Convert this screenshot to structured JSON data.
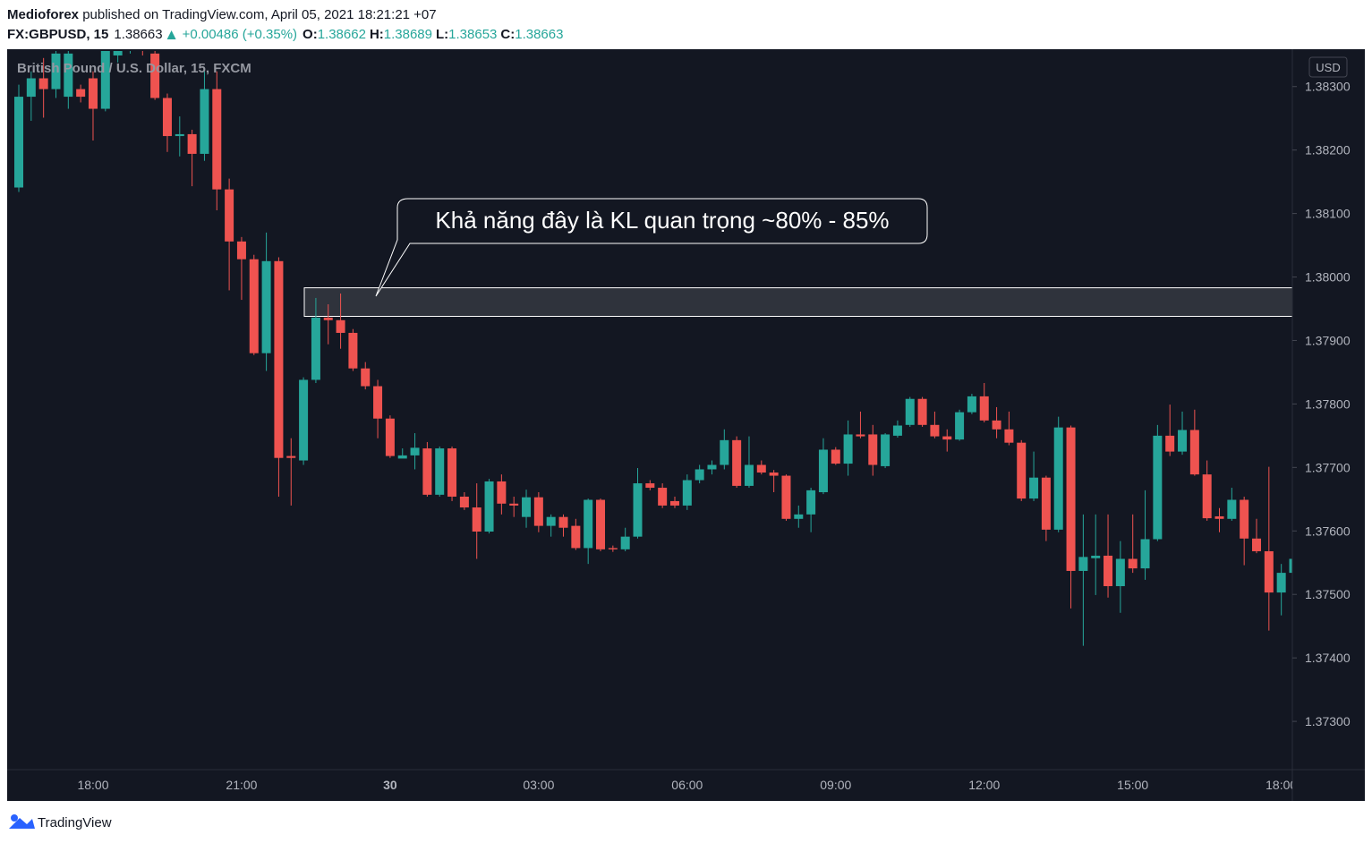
{
  "header": {
    "author": "Medioforex",
    "published": "published on TradingView.com, April 05, 2021 18:21:21 +07",
    "symbol": "FX:GBPUSD, 15",
    "last": "1.38663",
    "change": "+0.00486 (+0.35%)",
    "ohlc": [
      {
        "label": "O:",
        "value": "1.38662"
      },
      {
        "label": "H:",
        "value": "1.38689"
      },
      {
        "label": "L:",
        "value": "1.38653"
      },
      {
        "label": "C:",
        "value": "1.38663"
      }
    ]
  },
  "footer": {
    "brand": "TradingView"
  },
  "chart_data": {
    "type": "candlestick",
    "legend": "British Pound / U.S. Dollar, 15, FXCM",
    "currency": "USD",
    "annotation": "Khả năng đây là KL quan trọng ~80% - 85%",
    "zone": [
      1.37938,
      1.37983
    ],
    "up_color": "#26a69a",
    "down_color": "#ef5350",
    "ylim": [
      1.37224,
      1.38356
    ],
    "yticks": [
      {
        "value": 1.373,
        "label": "1.37300"
      },
      {
        "value": 1.374,
        "label": "1.37400"
      },
      {
        "value": 1.375,
        "label": "1.37500"
      },
      {
        "value": 1.376,
        "label": "1.37600"
      },
      {
        "value": 1.377,
        "label": "1.37700"
      },
      {
        "value": 1.378,
        "label": "1.37800"
      },
      {
        "value": 1.379,
        "label": "1.37900"
      },
      {
        "value": 1.38,
        "label": "1.38000"
      },
      {
        "value": 1.381,
        "label": "1.38100"
      },
      {
        "value": 1.382,
        "label": "1.38200"
      },
      {
        "value": 1.383,
        "label": "1.38300"
      }
    ],
    "categories": [
      null,
      null,
      null,
      null,
      null,
      null,
      "18:00",
      null,
      null,
      null,
      null,
      null,
      null,
      null,
      null,
      null,
      null,
      null,
      "21:00",
      null,
      null,
      null,
      null,
      null,
      null,
      null,
      null,
      null,
      null,
      null,
      "30",
      null,
      null,
      null,
      null,
      null,
      null,
      null,
      null,
      null,
      null,
      null,
      "03:00",
      null,
      null,
      null,
      null,
      null,
      null,
      null,
      null,
      null,
      null,
      null,
      "06:00",
      null,
      null,
      null,
      null,
      null,
      null,
      null,
      null,
      null,
      null,
      null,
      "09:00",
      null,
      null,
      null,
      null,
      null,
      null,
      null,
      null,
      null,
      null,
      null,
      "12:00",
      null,
      null,
      null,
      null,
      null,
      null,
      null,
      null,
      null,
      null,
      null,
      "15:00",
      null,
      null,
      null,
      null,
      null,
      null,
      null,
      null,
      null,
      null,
      null,
      "18:00",
      null
    ],
    "open": [
      1.38141,
      1.38284,
      1.38313,
      1.38296,
      1.38284,
      1.38296,
      1.38313,
      1.38265,
      1.38349,
      1.38356,
      1.38373,
      1.38352,
      1.38282,
      1.38222,
      1.38225,
      1.38194,
      1.38296,
      1.38138,
      1.38056,
      1.38028,
      1.3788,
      1.38025,
      1.37718,
      1.37711,
      1.37838,
      1.37936,
      1.37932,
      1.37912,
      1.37856,
      1.37828,
      1.37777,
      1.37714,
      1.37719,
      1.3773,
      1.37657,
      1.3773,
      1.37654,
      1.37637,
      1.37599,
      1.37678,
      1.37643,
      1.37622,
      1.37653,
      1.37608,
      1.37622,
      1.37608,
      1.37573,
      1.37649,
      1.37573,
      1.37571,
      1.37591,
      1.37675,
      1.37668,
      1.37647,
      1.3764,
      1.3768,
      1.37697,
      1.37704,
      1.37743,
      1.37671,
      1.37704,
      1.37692,
      1.37687,
      1.37619,
      1.37626,
      1.37661,
      1.37728,
      1.37706,
      1.37752,
      1.37752,
      1.37702,
      1.3775,
      1.37767,
      1.37808,
      1.37767,
      1.37749,
      1.37744,
      1.37787,
      1.37812,
      1.37774,
      1.3776,
      1.37739,
      1.37651,
      1.37684,
      1.37602,
      1.37763,
      1.37537,
      1.37557,
      1.37561,
      1.37513,
      1.37556,
      1.37541,
      1.37587,
      1.3775,
      1.37725,
      1.37759,
      1.37689,
      1.37623,
      1.37619,
      1.37649,
      1.37588,
      1.37568,
      1.37503,
      1.37534
    ],
    "high": [
      1.38303,
      1.38324,
      1.38345,
      1.38359,
      1.38359,
      1.38303,
      1.38324,
      1.38366,
      1.38363,
      1.38383,
      1.3838,
      1.38366,
      1.38289,
      1.38253,
      1.38232,
      1.38324,
      1.38324,
      1.38155,
      1.38063,
      1.38035,
      1.3807,
      1.38031,
      1.37746,
      1.37842,
      1.37967,
      1.37957,
      1.37974,
      1.37918,
      1.37866,
      1.37838,
      1.37782,
      1.3773,
      1.37754,
      1.3774,
      1.37733,
      1.37733,
      1.37661,
      1.37675,
      1.37682,
      1.37689,
      1.37654,
      1.37665,
      1.37661,
      1.37626,
      1.37626,
      1.37619,
      1.37651,
      1.37651,
      1.37577,
      1.37605,
      1.37699,
      1.3768,
      1.37675,
      1.37654,
      1.37689,
      1.37704,
      1.37711,
      1.3776,
      1.37749,
      1.37749,
      1.37711,
      1.37696,
      1.37689,
      1.3764,
      1.37668,
      1.37746,
      1.37732,
      1.37774,
      1.37788,
      1.37767,
      1.37754,
      1.37774,
      1.37811,
      1.37811,
      1.37788,
      1.3776,
      1.37791,
      1.37816,
      1.37833,
      1.37795,
      1.37788,
      1.37743,
      1.37725,
      1.37687,
      1.3778,
      1.37766,
      1.37626,
      1.37626,
      1.37626,
      1.37584,
      1.37626,
      1.37664,
      1.37767,
      1.37799,
      1.37788,
      1.37791,
      1.37711,
      1.37636,
      1.37668,
      1.37654,
      1.37619,
      1.37701,
      1.37548,
      1.37563
    ],
    "low": [
      1.38134,
      1.38246,
      1.38251,
      1.38282,
      1.38265,
      1.38275,
      1.38215,
      1.38261,
      1.38338,
      1.38352,
      1.38349,
      1.38279,
      1.38197,
      1.3819,
      1.38143,
      1.38183,
      1.38105,
      1.37979,
      1.37964,
      1.37877,
      1.37852,
      1.37654,
      1.3764,
      1.37704,
      1.37833,
      1.37894,
      1.37887,
      1.37852,
      1.37823,
      1.37746,
      1.37715,
      1.37715,
      1.37697,
      1.37654,
      1.37654,
      1.37647,
      1.37633,
      1.37556,
      1.37596,
      1.37626,
      1.37622,
      1.37605,
      1.37598,
      1.37591,
      1.37591,
      1.3757,
      1.37548,
      1.37568,
      1.37567,
      1.37568,
      1.37588,
      1.37664,
      1.37636,
      1.37636,
      1.37633,
      1.37675,
      1.37689,
      1.37697,
      1.37668,
      1.37668,
      1.37689,
      1.37661,
      1.37616,
      1.37605,
      1.37598,
      1.37658,
      1.37704,
      1.37687,
      1.37746,
      1.37687,
      1.37699,
      1.37747,
      1.37764,
      1.37764,
      1.37746,
      1.37725,
      1.37742,
      1.37784,
      1.37771,
      1.37746,
      1.37735,
      1.37647,
      1.37647,
      1.37584,
      1.37598,
      1.37478,
      1.37419,
      1.37499,
      1.37495,
      1.37471,
      1.37534,
      1.37523,
      1.37584,
      1.37718,
      1.3772,
      1.37687,
      1.37616,
      1.37598,
      1.37616,
      1.37546,
      1.37565,
      1.37443,
      1.37467,
      1.37531
    ],
    "close": [
      1.38284,
      1.38313,
      1.38296,
      1.38352,
      1.38352,
      1.38284,
      1.38265,
      1.38359,
      1.38356,
      1.38373,
      1.38359,
      1.38282,
      1.38222,
      1.38225,
      1.38194,
      1.38296,
      1.38138,
      1.38056,
      1.38028,
      1.3788,
      1.38025,
      1.37715,
      1.37715,
      1.37838,
      1.37936,
      1.37932,
      1.37912,
      1.37856,
      1.37828,
      1.37777,
      1.37718,
      1.37719,
      1.37731,
      1.37657,
      1.3773,
      1.37654,
      1.37637,
      1.37599,
      1.37678,
      1.37643,
      1.3764,
      1.37653,
      1.37608,
      1.37622,
      1.37605,
      1.37573,
      1.37649,
      1.37571,
      1.37571,
      1.37591,
      1.37675,
      1.37668,
      1.3764,
      1.3764,
      1.3768,
      1.37697,
      1.37704,
      1.37743,
      1.37671,
      1.37704,
      1.37692,
      1.37687,
      1.37619,
      1.37626,
      1.37664,
      1.37728,
      1.37706,
      1.37752,
      1.37749,
      1.37704,
      1.37752,
      1.37766,
      1.37808,
      1.37767,
      1.37749,
      1.37744,
      1.37787,
      1.37812,
      1.37774,
      1.3776,
      1.37739,
      1.37651,
      1.37684,
      1.37602,
      1.37763,
      1.37537,
      1.37559,
      1.37561,
      1.37513,
      1.37556,
      1.37541,
      1.37587,
      1.3775,
      1.37725,
      1.37759,
      1.37689,
      1.3762,
      1.37619,
      1.37649,
      1.37588,
      1.37568,
      1.37503,
      1.37534,
      1.37556
    ]
  }
}
